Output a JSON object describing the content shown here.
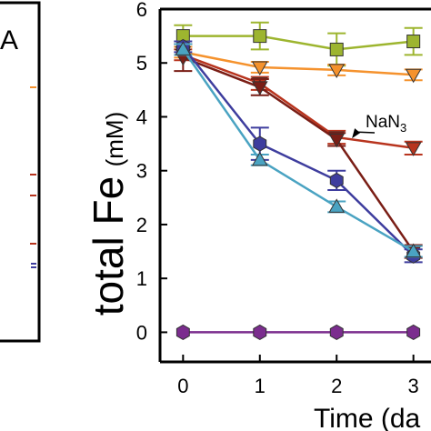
{
  "left_panel": {
    "label": "A"
  },
  "chart_data": {
    "type": "line",
    "xlabel": "Time (da",
    "ylabel_main": "total Fe",
    "ylabel_unit": "(mM)",
    "x_ticks": [
      "0",
      "1",
      "2",
      "3"
    ],
    "y_ticks": [
      "0",
      "1",
      "2",
      "3",
      "4",
      "5",
      "6"
    ],
    "xlim": [
      -0.3,
      3.3
    ],
    "ylim": [
      -0.55,
      6
    ],
    "grid": false,
    "annotation": {
      "text_main": "NaN",
      "text_sub": "3",
      "points_to": {
        "x": 2.2,
        "y": 3.6
      }
    },
    "series": [
      {
        "color": "#9db52f",
        "marker": "square",
        "x": [
          0,
          1,
          2,
          3
        ],
        "y": [
          5.5,
          5.5,
          5.25,
          5.4
        ],
        "err": [
          0.2,
          0.25,
          0.3,
          0.25
        ]
      },
      {
        "color": "#f5922d",
        "marker": "triangle-down",
        "x": [
          0,
          1,
          2,
          3
        ],
        "y": [
          5.2,
          4.92,
          4.87,
          4.78
        ],
        "err": [
          0.1,
          0.1,
          0.1,
          0.1
        ]
      },
      {
        "color": "#b8341e",
        "marker": "triangle-down",
        "x": [
          0,
          1,
          2,
          3
        ],
        "y": [
          5.15,
          4.62,
          3.62,
          3.42
        ],
        "err": [
          0.1,
          0.12,
          0.12,
          0.12
        ]
      },
      {
        "color": "#7a1e16",
        "marker": "triangle-down",
        "x": [
          0,
          1,
          2,
          3
        ],
        "y": [
          5.1,
          4.55,
          3.58,
          1.5
        ],
        "err": [
          0.25,
          0.15,
          0.12,
          0.12
        ]
      },
      {
        "color": "#3e3d9e",
        "marker": "hexagon",
        "x": [
          0,
          1,
          2,
          3
        ],
        "y": [
          5.3,
          3.5,
          2.82,
          1.42
        ],
        "err": [
          0.1,
          0.3,
          0.18,
          0.12
        ]
      },
      {
        "color": "#4aa3c2",
        "marker": "triangle-up",
        "x": [
          0,
          1,
          2,
          3
        ],
        "y": [
          5.25,
          3.2,
          2.33,
          1.5
        ],
        "err": [
          0.1,
          0.1,
          0.1,
          0.1
        ]
      },
      {
        "color": "#7b2d8e",
        "marker": "hexagon",
        "x": [
          0,
          1,
          2,
          3
        ],
        "y": [
          0,
          0,
          0,
          0
        ],
        "err": [
          0,
          0,
          0,
          0
        ]
      }
    ]
  }
}
